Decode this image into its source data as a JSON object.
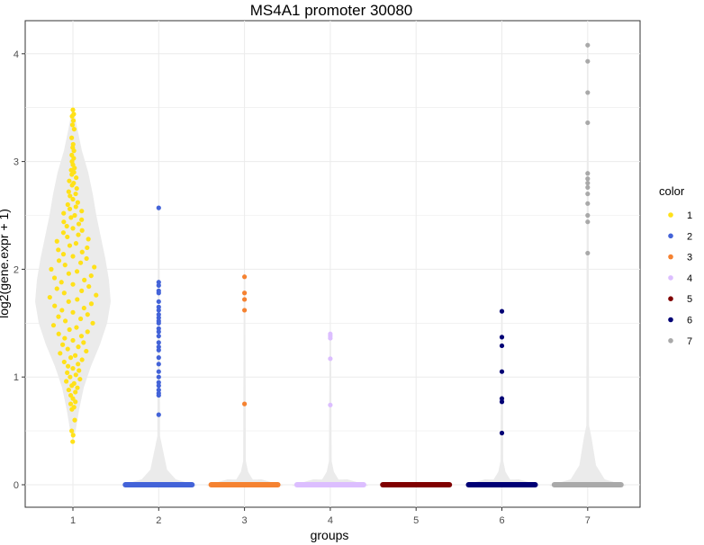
{
  "chart_data": {
    "type": "violin",
    "title": "MS4A1 promoter 30080",
    "xlabel": "groups",
    "ylabel": "log2(gene.expr + 1)",
    "categories": [
      "1",
      "2",
      "3",
      "4",
      "5",
      "6",
      "7"
    ],
    "ylim": [
      -0.2,
      4.3
    ],
    "yticks": [
      "0",
      "1",
      "2",
      "3",
      "4"
    ],
    "grid": true,
    "legend": {
      "title": "color",
      "position": "right",
      "items": [
        "1",
        "2",
        "3",
        "4",
        "5",
        "6",
        "7"
      ]
    },
    "colors": [
      "#FFE119",
      "#4363D8",
      "#F58231",
      "#DCBEFF",
      "#800000",
      "#000075",
      "#A9A9A9"
    ],
    "violin_fill": "#EBEBEB",
    "series": [
      {
        "name": "1",
        "min": 0.4,
        "max": 3.48,
        "points": [
          3.48,
          3.44,
          3.42,
          3.38,
          3.34,
          3.3,
          3.22,
          3.16,
          3.13,
          3.1,
          3.06,
          3.03,
          3.0,
          2.97,
          2.94,
          2.92,
          2.9,
          2.88,
          2.85,
          2.82,
          2.8,
          2.78,
          2.75,
          2.72,
          2.7,
          2.68,
          2.65,
          2.62,
          2.6,
          2.58,
          2.56,
          2.54,
          2.52,
          2.5,
          2.48,
          2.46,
          2.44,
          2.42,
          2.4,
          2.38,
          2.36,
          2.34,
          2.32,
          2.3,
          2.28,
          2.26,
          2.24,
          2.22,
          2.2,
          2.18,
          2.16,
          2.14,
          2.12,
          2.1,
          2.08,
          2.06,
          2.04,
          2.02,
          2.0,
          1.98,
          1.96,
          1.94,
          1.92,
          1.9,
          1.88,
          1.86,
          1.84,
          1.82,
          1.8,
          1.78,
          1.76,
          1.74,
          1.72,
          1.7,
          1.68,
          1.66,
          1.64,
          1.62,
          1.6,
          1.58,
          1.56,
          1.54,
          1.52,
          1.5,
          1.48,
          1.46,
          1.44,
          1.42,
          1.4,
          1.38,
          1.36,
          1.34,
          1.32,
          1.3,
          1.28,
          1.26,
          1.24,
          1.22,
          1.2,
          1.18,
          1.16,
          1.14,
          1.12,
          1.1,
          1.08,
          1.06,
          1.04,
          1.02,
          1.0,
          0.98,
          0.96,
          0.94,
          0.92,
          0.9,
          0.88,
          0.86,
          0.83,
          0.8,
          0.77,
          0.75,
          0.72,
          0.7,
          0.6,
          0.5,
          0.46,
          0.4
        ]
      },
      {
        "name": "2",
        "min": 0,
        "max": 2.57,
        "points": [
          2.57,
          1.88,
          1.85,
          1.8,
          1.78,
          1.7,
          1.65,
          1.62,
          1.58,
          1.55,
          1.52,
          1.5,
          1.45,
          1.42,
          1.38,
          1.32,
          1.28,
          1.25,
          1.18,
          1.12,
          1.05,
          1.0,
          0.95,
          0.92,
          0.88,
          0.85,
          0.83,
          0.65
        ]
      },
      {
        "name": "3",
        "min": 0,
        "max": 1.93,
        "points": [
          1.93,
          1.78,
          1.72,
          1.62,
          0.75
        ]
      },
      {
        "name": "4",
        "min": 0,
        "max": 1.4,
        "points": [
          1.4,
          1.38,
          1.36,
          1.17,
          0.74
        ]
      },
      {
        "name": "5",
        "min": 0,
        "max": 0,
        "points": []
      },
      {
        "name": "6",
        "min": 0,
        "max": 1.61,
        "points": [
          1.61,
          1.37,
          1.29,
          1.05,
          0.8,
          0.77,
          0.48
        ]
      },
      {
        "name": "7",
        "min": 0,
        "max": 4.08,
        "points": [
          4.08,
          3.93,
          3.64,
          3.36,
          2.89,
          2.84,
          2.8,
          2.76,
          2.7,
          2.61,
          2.5,
          2.44,
          2.15
        ]
      }
    ]
  }
}
